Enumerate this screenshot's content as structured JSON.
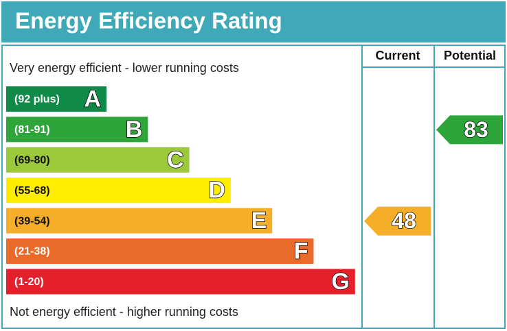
{
  "chart_data": {
    "type": "epc",
    "title": "Energy Efficiency Rating",
    "top_note": "Very energy efficient - lower running costs",
    "bottom_note": "Not energy efficient - higher running costs",
    "bands": [
      {
        "range": "(92 plus)",
        "letter": "A",
        "color": "#0f8a48"
      },
      {
        "range": "(81-91)",
        "letter": "B",
        "color": "#2ea53a"
      },
      {
        "range": "(69-80)",
        "letter": "C",
        "color": "#9cc83c"
      },
      {
        "range": "(55-68)",
        "letter": "D",
        "color": "#ffed00"
      },
      {
        "range": "(39-54)",
        "letter": "E",
        "color": "#f5ae2a"
      },
      {
        "range": "(21-38)",
        "letter": "F",
        "color": "#ea6a29"
      },
      {
        "range": "(1-20)",
        "letter": "G",
        "color": "#e3202b"
      }
    ],
    "series": [
      {
        "name": "Current",
        "values": [
          48
        ]
      },
      {
        "name": "Potential",
        "values": [
          83
        ]
      }
    ]
  }
}
